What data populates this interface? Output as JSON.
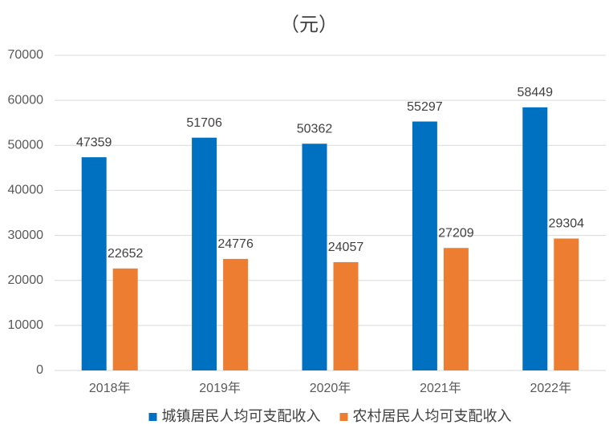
{
  "chart_data": {
    "type": "bar",
    "title": "（元）",
    "categories": [
      "2018年",
      "2019年",
      "2020年",
      "2021年",
      "2022年"
    ],
    "series": [
      {
        "name": "城镇居民人均可支配收入",
        "color": "#0070c0",
        "values": [
          47359,
          51706,
          50362,
          55297,
          58449
        ]
      },
      {
        "name": "农村居民人均可支配收入",
        "color": "#ed7d31",
        "values": [
          22652,
          24776,
          24057,
          27209,
          29304
        ]
      }
    ],
    "ylim": [
      0,
      70000
    ],
    "yticks": [
      0,
      10000,
      20000,
      30000,
      40000,
      50000,
      60000,
      70000
    ],
    "grid": true,
    "legend": "bottom"
  }
}
